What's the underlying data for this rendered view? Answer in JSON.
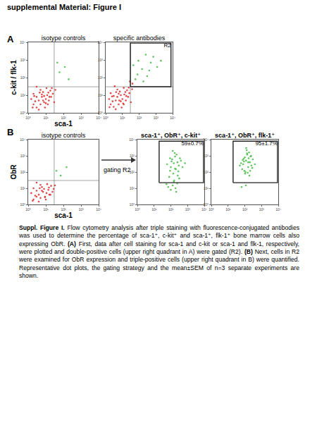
{
  "header": {
    "title": "supplemental Material: Figure I"
  },
  "panels": [
    "A",
    "B"
  ],
  "arrow_label": "gating R2",
  "chart_data": [
    {
      "type": "scatter",
      "title": "isotype controls",
      "xlabel": "sca-1",
      "ylabel": "c-kit / flk-1",
      "log": true,
      "xlim": [
        1,
        10000
      ],
      "ylim": [
        1,
        10000
      ],
      "xticks": [
        {
          "value": 1,
          "label": "10⁰"
        },
        {
          "value": 10,
          "label": "10¹"
        },
        {
          "value": 100,
          "label": "10²"
        },
        {
          "value": 1000,
          "label": "10³"
        },
        {
          "value": 10000,
          "label": "10⁴"
        }
      ],
      "yticks": [
        {
          "value": 1,
          "label": "10⁰"
        },
        {
          "value": 10,
          "label": "10¹"
        },
        {
          "value": 100,
          "label": "10²"
        },
        {
          "value": 1000,
          "label": "10³"
        },
        {
          "value": 10000,
          "label": "10⁴"
        }
      ],
      "quadrant": {
        "x": 30,
        "y": 30
      },
      "series": [
        {
          "color": "#d92b2b",
          "x": [
            2,
            3,
            4,
            5,
            6,
            8,
            10,
            12,
            3,
            2,
            15,
            7,
            20,
            5,
            9,
            14,
            25,
            4,
            1.5,
            11,
            30,
            6,
            18,
            2.5,
            8,
            35,
            13,
            3,
            22,
            1.8,
            7,
            16,
            4.5,
            10,
            2.2
          ],
          "y": [
            3,
            2,
            5,
            3,
            8,
            4,
            6,
            10,
            8,
            12,
            5,
            15,
            8,
            20,
            2,
            14,
            12,
            1.5,
            6,
            25,
            4,
            11,
            18,
            4.5,
            9,
            20,
            3,
            30,
            25,
            2,
            5,
            8,
            14,
            3.5,
            9
          ]
        },
        {
          "color": "#44bb44",
          "x": [
            60,
            200,
            120,
            45
          ],
          "y": [
            200,
            80,
            400,
            700
          ]
        }
      ]
    },
    {
      "type": "scatter",
      "title": "specific antibodies",
      "log": true,
      "xlim": [
        1,
        10000
      ],
      "ylim": [
        1,
        10000
      ],
      "xticks": [
        {
          "value": 1,
          "label": "10⁰"
        },
        {
          "value": 10,
          "label": "10¹"
        },
        {
          "value": 100,
          "label": "10²"
        },
        {
          "value": 1000,
          "label": "10³"
        },
        {
          "value": 10000,
          "label": "10⁴"
        }
      ],
      "yticks": [
        {
          "value": 1,
          "label": "10⁰"
        },
        {
          "value": 10,
          "label": "10¹"
        },
        {
          "value": 100,
          "label": "10²"
        },
        {
          "value": 1000,
          "label": "10³"
        },
        {
          "value": 10000,
          "label": "10⁴"
        }
      ],
      "quadrant": {
        "x": 30,
        "y": 30
      },
      "gate": {
        "x": [
          30,
          8000
        ],
        "y": [
          30,
          9000
        ],
        "label": "R2"
      },
      "series": [
        {
          "color": "#d92b2b",
          "x": [
            2,
            3,
            4,
            6,
            5,
            8,
            10,
            13,
            3,
            2,
            16,
            7,
            22,
            5,
            9,
            15,
            26,
            4,
            1.6,
            12,
            32,
            6,
            19,
            2.6,
            8,
            38,
            12,
            3.5,
            24,
            1.7,
            6.5,
            17,
            4.2,
            11,
            2.4,
            40,
            28
          ],
          "y": [
            3,
            2.2,
            5,
            3,
            8,
            4.5,
            6,
            11,
            9,
            13,
            5,
            16,
            8,
            21,
            2,
            15,
            13,
            1.6,
            6,
            26,
            4,
            12,
            19,
            4.5,
            10,
            22,
            3,
            32,
            27,
            2.1,
            5,
            9,
            15,
            3.4,
            8.5,
            45,
            60
          ]
        },
        {
          "color": "#44bb44",
          "x": [
            80,
            150,
            300,
            500,
            90,
            1200,
            250,
            60,
            400,
            700,
            45,
            180,
            2000
          ],
          "y": [
            150,
            300,
            120,
            700,
            900,
            400,
            2000,
            80,
            250,
            1500,
            500,
            60,
            900
          ]
        }
      ]
    },
    {
      "type": "scatter",
      "title": "isotype controls",
      "xlabel": "sca-1",
      "ylabel": "ObR",
      "log": true,
      "xlim": [
        1,
        10000
      ],
      "ylim": [
        1,
        10000
      ],
      "xticks": [
        {
          "value": 1,
          "label": "10⁰"
        },
        {
          "value": 10,
          "label": "10¹"
        },
        {
          "value": 100,
          "label": "10²"
        },
        {
          "value": 1000,
          "label": "10³"
        },
        {
          "value": 10000,
          "label": "10⁴"
        }
      ],
      "yticks": [
        {
          "value": 1,
          "label": "10⁰"
        },
        {
          "value": 10,
          "label": "10¹"
        },
        {
          "value": 100,
          "label": "10²"
        },
        {
          "value": 1000,
          "label": "10³"
        },
        {
          "value": 10000,
          "label": "10⁴"
        }
      ],
      "quadrant": {
        "x": 30,
        "y": 30
      },
      "series": [
        {
          "color": "#d92b2b",
          "x": [
            2,
            3,
            4,
            5,
            7,
            9,
            11,
            14,
            3,
            2,
            18,
            6,
            24,
            5,
            10,
            15,
            28,
            4,
            1.5,
            12,
            8,
            20,
            2.5,
            6,
            33,
            3,
            1.8,
            16,
            4.5,
            9
          ],
          "y": [
            2,
            3,
            4,
            2.5,
            6,
            3,
            5,
            8,
            7,
            10,
            4,
            12,
            6,
            16,
            2,
            11,
            9,
            1.5,
            5,
            18,
            9,
            14,
            3.5,
            7,
            15,
            22,
            1.7,
            4,
            10,
            2.8
          ]
        },
        {
          "color": "#44bb44",
          "x": [
            70,
            150,
            40
          ],
          "y": [
            60,
            200,
            120
          ]
        }
      ]
    },
    {
      "type": "scatter",
      "title": "sca-1⁺, ObR⁺, c-kit⁺",
      "log": true,
      "xlim": [
        1,
        10000
      ],
      "ylim": [
        1,
        10000
      ],
      "xticks": [
        {
          "value": 1,
          "label": "10⁰"
        },
        {
          "value": 10,
          "label": "10¹"
        },
        {
          "value": 100,
          "label": "10²"
        },
        {
          "value": 1000,
          "label": "10³"
        },
        {
          "value": 10000,
          "label": "10⁴"
        }
      ],
      "yticks": [
        {
          "value": 1,
          "label": "10⁰"
        },
        {
          "value": 10,
          "label": "10¹"
        },
        {
          "value": 100,
          "label": "10²"
        },
        {
          "value": 1000,
          "label": "10³"
        },
        {
          "value": 10000,
          "label": "10⁴"
        }
      ],
      "gate": {
        "x": [
          20,
          9000
        ],
        "y": [
          22,
          8000
        ],
        "label": "59±0.7%"
      },
      "series": [
        {
          "color": "#44bb44",
          "x": [
            100,
            150,
            200,
            120,
            250,
            300,
            180,
            90,
            400,
            220,
            140,
            350,
            60,
            500,
            170,
            110,
            260,
            80,
            130,
            700,
            190,
            240,
            160,
            70,
            320,
            100,
            150,
            210,
            55,
            130,
            280,
            90,
            180
          ],
          "y": [
            200,
            350,
            150,
            600,
            400,
            250,
            900,
            120,
            500,
            1200,
            80,
            700,
            300,
            200,
            1500,
            450,
            60,
            50,
            15,
            350,
            10,
            20,
            30,
            12,
            40,
            8,
            25,
            6,
            18,
            2000,
            110,
            700,
            160
          ]
        }
      ]
    },
    {
      "type": "scatter",
      "title": "sca-1⁺, ObR⁺, flk-1⁺",
      "log": true,
      "xlim": [
        1,
        10000
      ],
      "ylim": [
        1,
        10000
      ],
      "xticks": [
        {
          "value": 1,
          "label": "10⁰"
        },
        {
          "value": 10,
          "label": "10¹"
        },
        {
          "value": 100,
          "label": "10²"
        },
        {
          "value": 1000,
          "label": "10³"
        },
        {
          "value": 10000,
          "label": "10⁴"
        }
      ],
      "yticks": [
        {
          "value": 1,
          "label": "10⁰"
        },
        {
          "value": 10,
          "label": "10¹"
        },
        {
          "value": 100,
          "label": "10²"
        },
        {
          "value": 1000,
          "label": "10³"
        },
        {
          "value": 10000,
          "label": "10⁴"
        }
      ],
      "gate": {
        "x": [
          20,
          9000
        ],
        "y": [
          22,
          8000
        ],
        "label": "95±1.7%"
      },
      "series": [
        {
          "color": "#44bb44",
          "x": [
            80,
            120,
            160,
            100,
            200,
            250,
            140,
            70,
            300,
            180,
            110,
            90,
            220,
            60,
            130,
            170,
            280,
            95,
            150,
            50,
            190,
            120,
            75,
            240,
            105,
            160,
            135,
            85,
            210,
            400,
            115,
            65
          ],
          "y": [
            300,
            500,
            200,
            800,
            400,
            250,
            1200,
            150,
            600,
            1600,
            100,
            450,
            900,
            350,
            2200,
            700,
            180,
            120,
            90,
            250,
            60,
            3000,
            550,
            1000,
            80,
            400,
            1400,
            650,
            120,
            300,
            15,
            12
          ]
        }
      ]
    }
  ],
  "caption": [
    {
      "text": "Suppl. Figure I.",
      "bold": true
    },
    {
      "text": " Flow cytometry analysis after triple staining with fluorescence-conjugated antibodies was used to determine the percentage of sca-1⁺, c-kit⁺ and sca-1⁺, flk-1⁺ bone marrow cells also expressing ObR. ",
      "bold": false
    },
    {
      "text": "(A)",
      "bold": true
    },
    {
      "text": " First, data after cell staining for sca-1 and c-kit or sca-1 and flk-1, respectively, were plotted and double-positive cells (upper right quadrant in A) were gated (R2). ",
      "bold": false
    },
    {
      "text": "(B)",
      "bold": true
    },
    {
      "text": " Next, cells in R2 were examined for ObR expression and triple-positive cells (upper right quadrant in B) were quantified. Representative dot plots, the gating strategy and the mean±SEM of n=3 separate experiments are shown.",
      "bold": false
    }
  ]
}
